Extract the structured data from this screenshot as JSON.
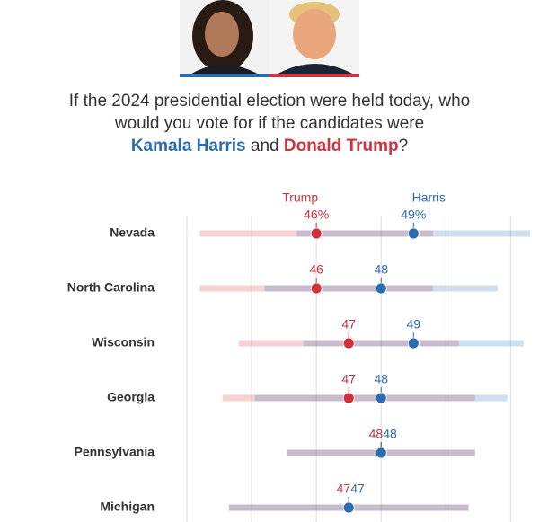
{
  "chart_data": {
    "type": "dotrange",
    "title": {
      "text": "If the 2024 presidential election were held today, who would you vote for if the candidates were",
      "harris": "Kamala Harris",
      "and": "and",
      "trump": "Donald Trump",
      "end": "?"
    },
    "categories": [
      "Nevada",
      "North Carolina",
      "Wisconsin",
      "Georgia",
      "Pennsylvania",
      "Michigan"
    ],
    "series": [
      {
        "name": "Trump",
        "color": "#d0313a",
        "values": [
          46,
          46,
          47,
          47,
          48,
          47
        ],
        "value_labels": [
          "46%",
          "46",
          "47",
          "47",
          "48",
          "47"
        ],
        "errors": [
          3.6,
          3.6,
          3.4,
          3.9,
          2.9,
          3.7
        ]
      },
      {
        "name": "Harris",
        "color": "#2b6cb0",
        "values": [
          49,
          48,
          49,
          48,
          48,
          47
        ],
        "value_labels": [
          "49%",
          "48",
          "49",
          "48",
          "48",
          "47"
        ],
        "errors": [
          3.6,
          3.6,
          3.4,
          3.9,
          2.9,
          3.7
        ]
      }
    ],
    "xlim": [
      41.5,
      52.6
    ],
    "xticks": [
      42,
      44,
      46,
      48,
      50,
      52
    ],
    "grid": true
  }
}
